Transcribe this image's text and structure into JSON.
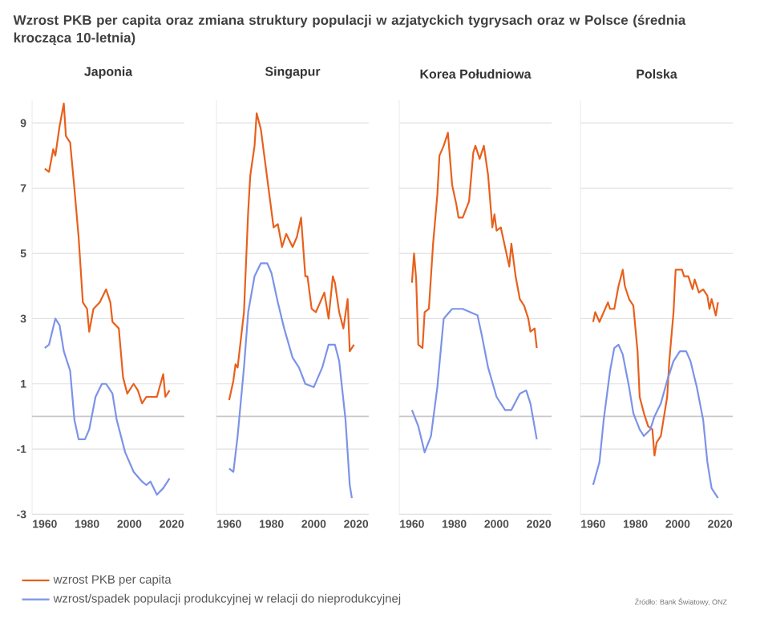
{
  "chart_data": [
    {
      "type": "line",
      "title": "Japonia",
      "annotations": [
        "Wzrost PKB per capita oraz zmiana struktury populacji w azjatyckich tygrysach oraz w Polsce (średnia krocząca 10-letnia)"
      ],
      "legend": "bottom",
      "grid": "y",
      "xlim": [
        1954,
        2026
      ],
      "ylim": [
        -3,
        9.7
      ],
      "xticks": [
        1960,
        1980,
        2000,
        2020
      ],
      "yticks": [
        -3,
        -1,
        1,
        3,
        5,
        7,
        9
      ],
      "ref_lines": [
        {
          "axis": "y",
          "value": 0,
          "color": "#c8c8c8"
        }
      ],
      "series": [
        {
          "name": "wzrost PKB per capita",
          "color": "#e8601c",
          "x": [
            1960,
            1962,
            1964,
            1965,
            1967,
            1969,
            1970,
            1972,
            1974,
            1976,
            1978,
            1980,
            1981,
            1983,
            1986,
            1989,
            1991,
            1992,
            1995,
            1997,
            1999,
            2002,
            2004,
            2006,
            2008,
            2011,
            2013,
            2016,
            2017,
            2019
          ],
          "values": [
            7.6,
            7.5,
            8.2,
            8.0,
            8.9,
            9.6,
            8.6,
            8.4,
            7.0,
            5.5,
            3.5,
            3.3,
            2.6,
            3.3,
            3.5,
            3.9,
            3.5,
            2.9,
            2.7,
            1.2,
            0.7,
            1.0,
            0.8,
            0.4,
            0.6,
            0.6,
            0.6,
            1.3,
            0.6,
            0.8
          ]
        },
        {
          "name": "wzrost/spadek populacji produkcyjnej w relacji do nieprodukcyjnej",
          "color": "#7b93e8",
          "x": [
            1960,
            1962,
            1965,
            1967,
            1969,
            1972,
            1974,
            1976,
            1979,
            1981,
            1984,
            1987,
            1989,
            1992,
            1994,
            1998,
            2002,
            2006,
            2008,
            2010,
            2013,
            2016,
            2019
          ],
          "values": [
            2.1,
            2.2,
            3.0,
            2.8,
            2.0,
            1.4,
            -0.1,
            -0.7,
            -0.7,
            -0.4,
            0.6,
            1.0,
            1.0,
            0.7,
            -0.1,
            -1.1,
            -1.7,
            -2.0,
            -2.1,
            -2.0,
            -2.4,
            -2.2,
            -1.9
          ]
        }
      ]
    },
    {
      "type": "line",
      "title": "Singapur",
      "tick_labels": "x",
      "grid": "y",
      "xlim": [
        1954,
        2026
      ],
      "ylim": [
        -3,
        9.7
      ],
      "xticks": [
        1960,
        1980,
        2000,
        2020
      ],
      "yticks": [
        -3,
        -1,
        1,
        3,
        5,
        7,
        9
      ],
      "ref_lines": [
        {
          "axis": "y",
          "value": 0,
          "color": "#c8c8c8"
        }
      ],
      "series": [
        {
          "color": "#e8601c",
          "x": [
            1960,
            1962,
            1963,
            1964,
            1967,
            1969,
            1970,
            1972,
            1973,
            1975,
            1977,
            1979,
            1981,
            1983,
            1985,
            1987,
            1990,
            1992,
            1994,
            1996,
            1997,
            1999,
            2001,
            2003,
            2005,
            2007,
            2009,
            2010,
            2012,
            2014,
            2016,
            2017,
            2019
          ],
          "values": [
            0.5,
            1.1,
            1.6,
            1.5,
            3.2,
            6.3,
            7.4,
            8.3,
            9.3,
            8.8,
            7.8,
            6.8,
            5.8,
            5.9,
            5.2,
            5.6,
            5.2,
            5.5,
            6.1,
            4.3,
            4.3,
            3.3,
            3.2,
            3.5,
            3.8,
            3.0,
            4.3,
            4.1,
            3.2,
            2.7,
            3.6,
            2.0,
            2.2
          ]
        },
        {
          "color": "#7b93e8",
          "x": [
            1960,
            1962,
            1964,
            1967,
            1969,
            1972,
            1975,
            1978,
            1980,
            1983,
            1986,
            1990,
            1993,
            1996,
            2000,
            2004,
            2007,
            2010,
            2012,
            2015,
            2017,
            2018
          ],
          "values": [
            -1.6,
            -1.7,
            -0.6,
            1.5,
            3.2,
            4.3,
            4.7,
            4.7,
            4.4,
            3.5,
            2.7,
            1.8,
            1.5,
            1.0,
            0.9,
            1.5,
            2.2,
            2.2,
            1.7,
            -0.1,
            -2.1,
            -2.5
          ]
        }
      ]
    },
    {
      "type": "line",
      "title": "Korea Południowa",
      "tick_labels": "x",
      "grid": "y",
      "xlim": [
        1954,
        2026
      ],
      "ylim": [
        -3,
        9.7
      ],
      "xticks": [
        1960,
        1980,
        2000,
        2020
      ],
      "yticks": [
        -3,
        -1,
        1,
        3,
        5,
        7,
        9
      ],
      "ref_lines": [
        {
          "axis": "y",
          "value": 0,
          "color": "#c8c8c8"
        }
      ],
      "series": [
        {
          "color": "#e8601c",
          "x": [
            1960,
            1961,
            1962,
            1963,
            1965,
            1966,
            1968,
            1970,
            1972,
            1973,
            1975,
            1977,
            1979,
            1981,
            1982,
            1984,
            1987,
            1989,
            1990,
            1992,
            1994,
            1996,
            1998,
            1999,
            2000,
            2002,
            2004,
            2006,
            2007,
            2009,
            2011,
            2013,
            2015,
            2016,
            2018,
            2019
          ],
          "values": [
            4.1,
            5.0,
            4.2,
            2.2,
            2.1,
            3.2,
            3.3,
            5.3,
            6.8,
            8.0,
            8.3,
            8.7,
            7.1,
            6.5,
            6.1,
            6.1,
            6.6,
            8.1,
            8.3,
            7.9,
            8.3,
            7.4,
            5.8,
            6.2,
            5.7,
            5.8,
            5.2,
            4.6,
            5.3,
            4.3,
            3.6,
            3.4,
            3.0,
            2.6,
            2.7,
            2.1
          ]
        },
        {
          "color": "#7b93e8",
          "x": [
            1960,
            1963,
            1966,
            1969,
            1972,
            1975,
            1979,
            1984,
            1991,
            1993,
            1996,
            2000,
            2004,
            2007,
            2011,
            2014,
            2016,
            2019
          ],
          "values": [
            0.2,
            -0.3,
            -1.1,
            -0.6,
            0.9,
            3.0,
            3.3,
            3.3,
            3.1,
            2.5,
            1.5,
            0.6,
            0.2,
            0.2,
            0.7,
            0.8,
            0.4,
            -0.7
          ]
        }
      ]
    },
    {
      "type": "line",
      "title": "Polska",
      "tick_labels": "x",
      "annotations": [
        "Źródło: Bank Światowy, ONZ"
      ],
      "grid": "y",
      "xlim": [
        1954,
        2026
      ],
      "ylim": [
        -3,
        9.7
      ],
      "xticks": [
        1960,
        1980,
        2000,
        2020
      ],
      "yticks": [
        -3,
        -1,
        1,
        3,
        5,
        7,
        9
      ],
      "ref_lines": [
        {
          "axis": "y",
          "value": 0,
          "color": "#c8c8c8"
        }
      ],
      "series": [
        {
          "color": "#e8601c",
          "x": [
            1960,
            1961,
            1963,
            1965,
            1967,
            1968,
            1970,
            1972,
            1974,
            1975,
            1977,
            1979,
            1981,
            1982,
            1984,
            1986,
            1988,
            1989,
            1990,
            1992,
            1995,
            1996,
            1998,
            1999,
            2002,
            2003,
            2005,
            2007,
            2008,
            2010,
            2012,
            2014,
            2015,
            2016,
            2018,
            2019
          ],
          "values": [
            2.9,
            3.2,
            2.9,
            3.2,
            3.5,
            3.3,
            3.3,
            4.0,
            4.5,
            4.0,
            3.6,
            3.4,
            2.0,
            0.6,
            0.1,
            -0.3,
            -0.4,
            -1.2,
            -0.8,
            -0.6,
            0.6,
            1.7,
            3.2,
            4.5,
            4.5,
            4.3,
            4.3,
            3.9,
            4.2,
            3.8,
            3.9,
            3.7,
            3.3,
            3.6,
            3.1,
            3.5
          ]
        },
        {
          "color": "#7b93e8",
          "x": [
            1960,
            1963,
            1965,
            1968,
            1970,
            1972,
            1974,
            1977,
            1979,
            1982,
            1984,
            1987,
            1989,
            1992,
            1995,
            1998,
            2001,
            2004,
            2006,
            2009,
            2012,
            2014,
            2016,
            2019
          ],
          "values": [
            -2.1,
            -1.4,
            -0.1,
            1.4,
            2.1,
            2.2,
            1.9,
            0.9,
            0.1,
            -0.4,
            -0.6,
            -0.4,
            0.0,
            0.4,
            1.1,
            1.7,
            2.0,
            2.0,
            1.7,
            0.9,
            -0.1,
            -1.4,
            -2.2,
            -2.5
          ]
        }
      ]
    }
  ]
}
